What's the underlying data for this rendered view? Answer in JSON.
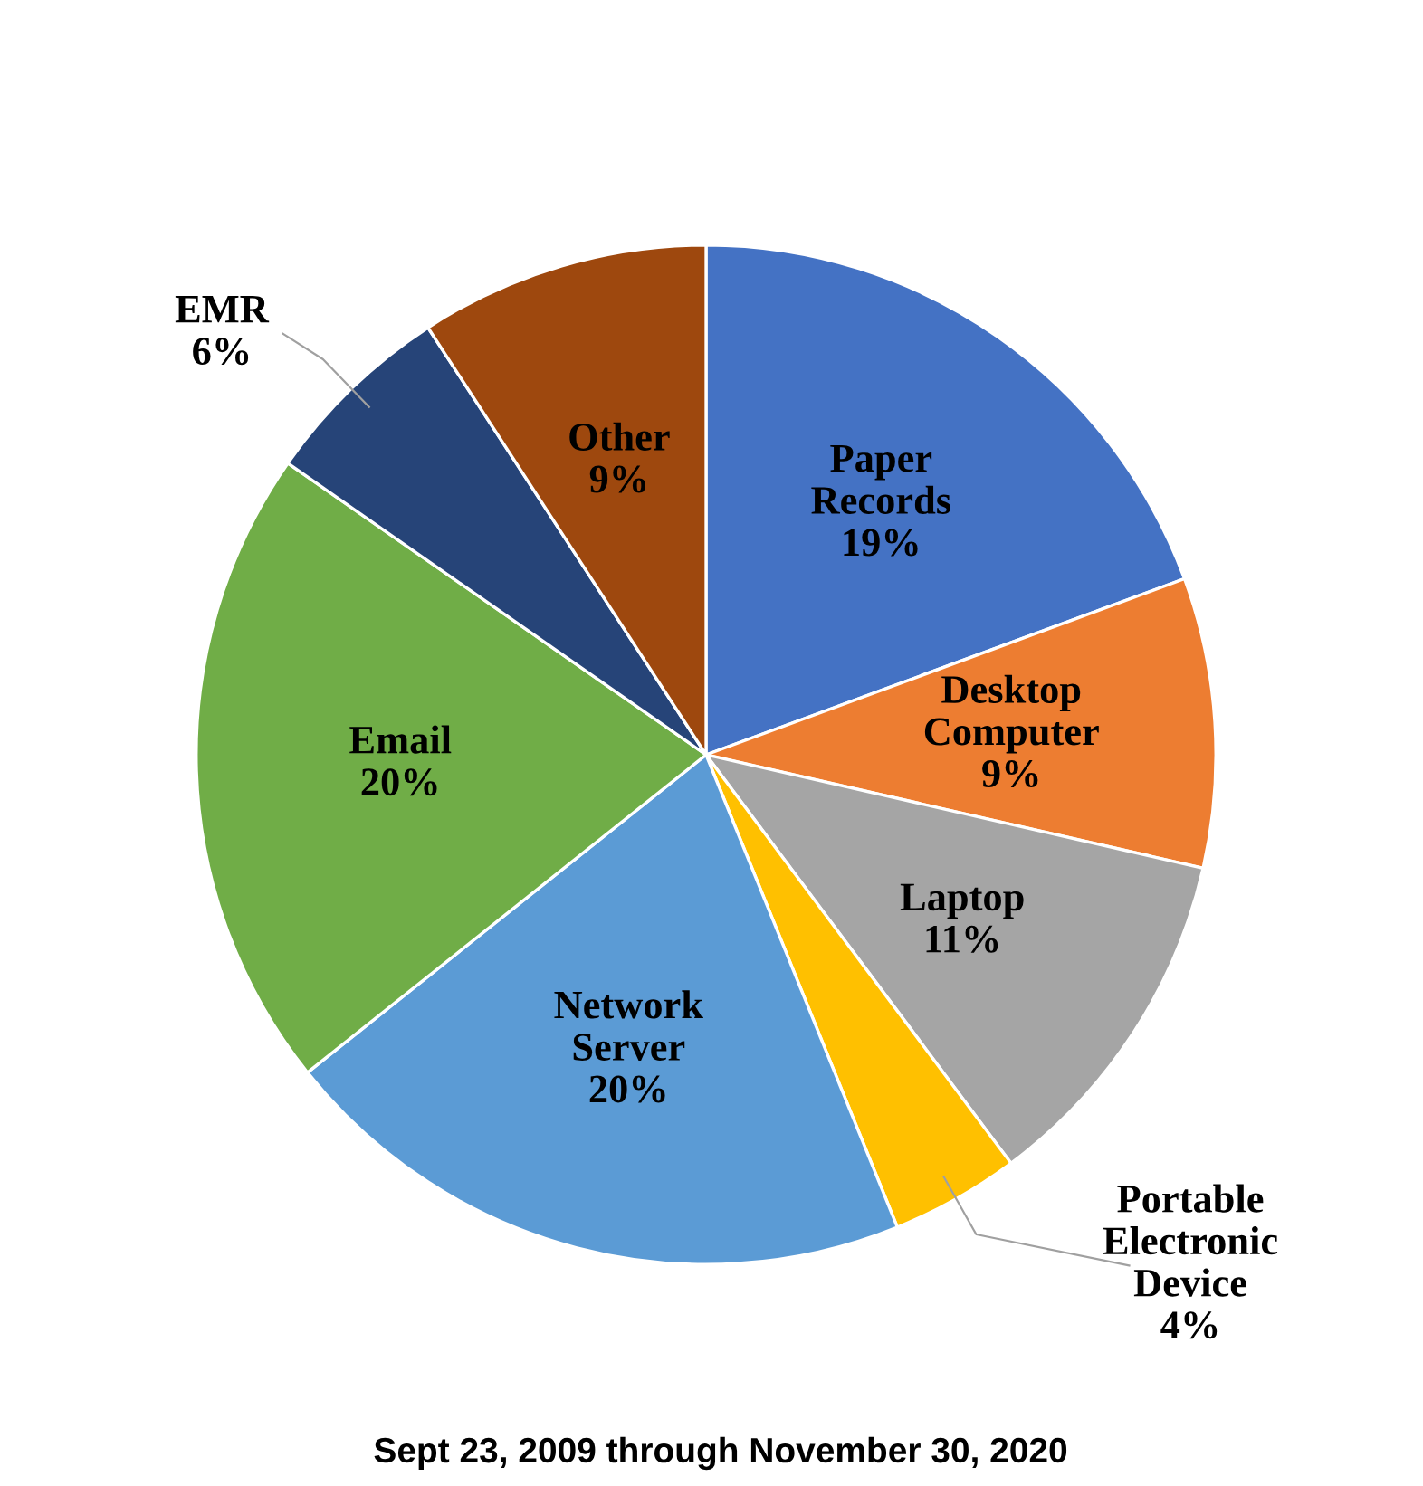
{
  "chart_data": {
    "type": "pie",
    "categories": [
      "Paper Records",
      "Desktop Computer",
      "Laptop",
      "Portable Electronic Device",
      "Network Server",
      "Email",
      "EMR",
      "Other"
    ],
    "values": [
      19,
      9,
      11,
      4,
      20,
      20,
      6,
      9
    ],
    "value_labels": [
      "19%",
      "9%",
      "11%",
      "4%",
      "20%",
      "20%",
      "6%",
      "9%"
    ],
    "colors": [
      "#4472c4",
      "#ed7d31",
      "#a5a5a5",
      "#ffc000",
      "#5b9bd5",
      "#70ad47",
      "#264478",
      "#9e480e"
    ],
    "annotations": [
      "Sept 23, 2009 through November 30, 2020"
    ]
  }
}
